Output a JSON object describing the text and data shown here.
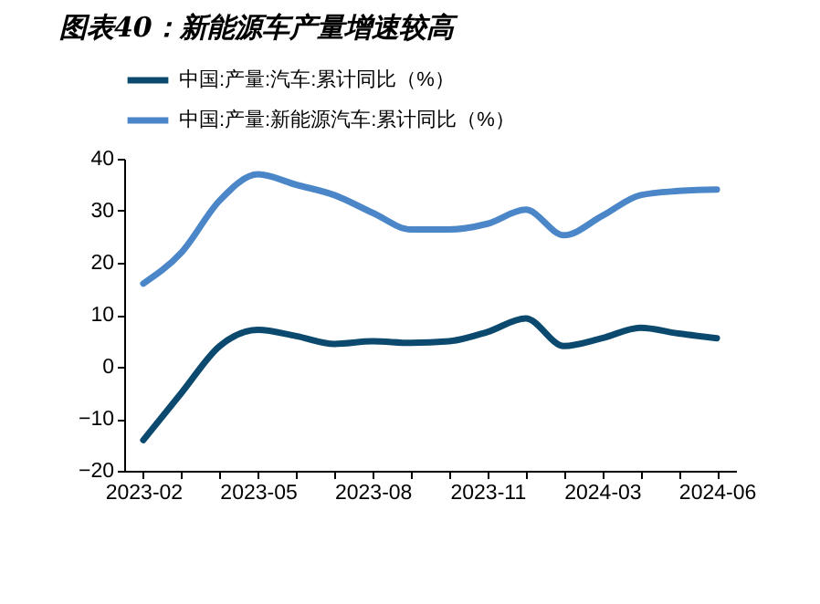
{
  "chart_data": {
    "type": "line",
    "title": "图表40：新能源车产量增速较高",
    "categories": [
      "2023-02",
      null,
      null,
      "2023-05",
      null,
      null,
      "2023-08",
      null,
      null,
      "2023-11",
      null,
      null,
      "2024-03",
      null,
      null,
      "2024-06"
    ],
    "series": [
      {
        "name": "中国:产量:汽车:累计同比（%）",
        "color": "#0b4a6e",
        "values": [
          -14.1,
          -5,
          4,
          7.1,
          5.9,
          4.4,
          4.9,
          4.6,
          4.9,
          6.7,
          9.3,
          4.0,
          5.5,
          7.5,
          6.4,
          5.5
        ]
      },
      {
        "name": "中国:产量:新能源汽车:累计同比（%）",
        "color": "#4a86c8",
        "values": [
          16.0,
          22,
          32,
          37,
          35,
          33,
          29.6,
          26.4,
          26.4,
          27.5,
          30.2,
          25.3,
          29,
          33,
          33.8,
          34.1
        ]
      }
    ],
    "ylim": [
      -20,
      40
    ],
    "yticks": [
      -20,
      -10,
      0,
      10,
      20,
      30,
      40
    ],
    "grid": false,
    "legend": "top",
    "marker": "none",
    "line_style": "solid"
  }
}
